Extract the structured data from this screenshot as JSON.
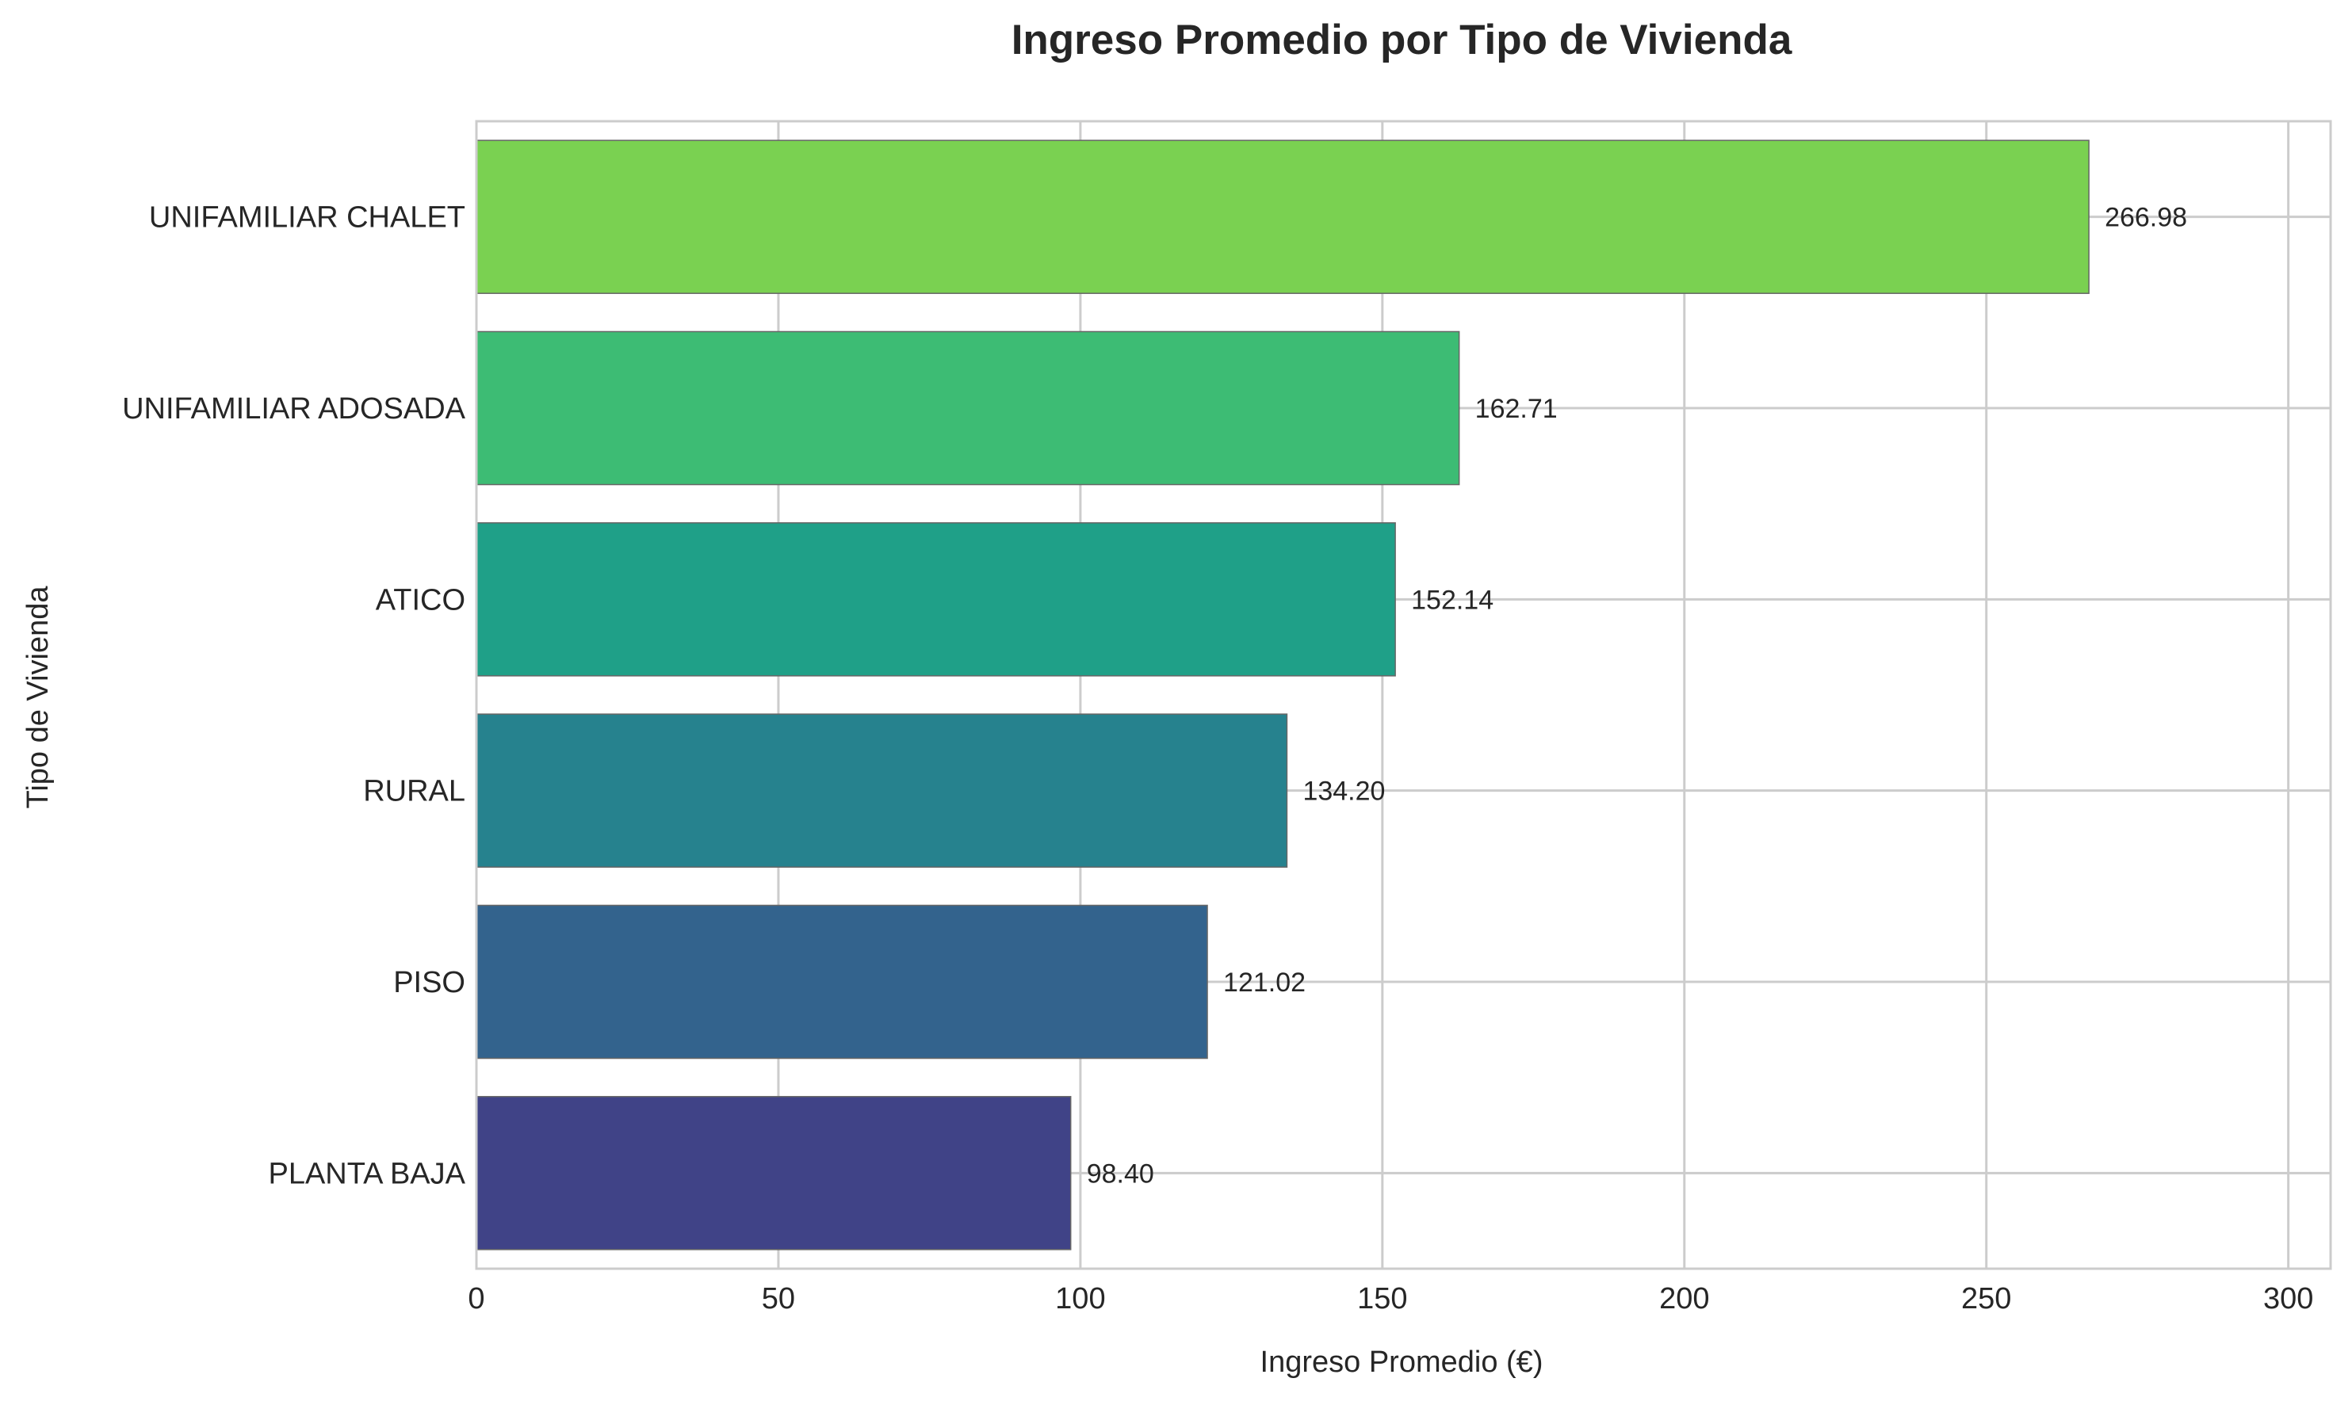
{
  "chart_data": {
    "type": "bar",
    "orientation": "horizontal",
    "title": "Ingreso Promedio por Tipo de Vivienda",
    "xlabel": "Ingreso Promedio (€)",
    "ylabel": "Tipo de Vivienda",
    "xlim": [
      0,
      307
    ],
    "xticks": [
      0,
      50,
      100,
      150,
      200,
      250,
      300
    ],
    "grid": true,
    "categories": [
      "UNIFAMILIAR CHALET",
      "UNIFAMILIAR ADOSADA",
      "ATICO",
      "RURAL",
      "PISO",
      "PLANTA BAJA"
    ],
    "values": [
      266.98,
      162.71,
      152.14,
      134.2,
      121.02,
      98.4
    ],
    "value_labels": [
      "266.98",
      "162.71",
      "152.14",
      "134.20",
      "121.02",
      "98.40"
    ],
    "colors": [
      "#7ad151",
      "#3dbc74",
      "#1fa088",
      "#26828e",
      "#33638d",
      "#404387"
    ]
  }
}
